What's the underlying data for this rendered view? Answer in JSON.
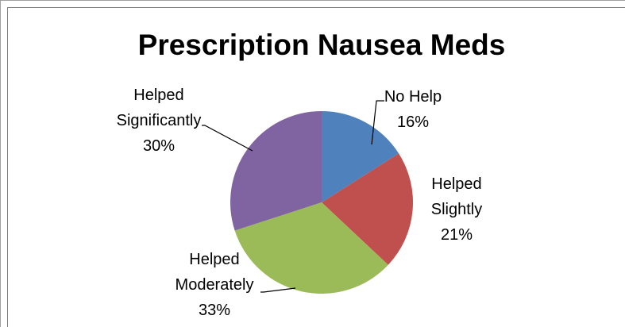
{
  "chart_data": {
    "type": "pie",
    "title": "Prescription Nausea Meds",
    "categories": [
      "No Help",
      "Helped Slightly",
      "Helped Moderately",
      "Helped Significantly"
    ],
    "values": [
      16,
      21,
      33,
      30
    ],
    "value_labels": [
      "16%",
      "21%",
      "33%",
      "30%"
    ],
    "colors": [
      "#4f81bd",
      "#c0504d",
      "#9bbb59",
      "#8064a2"
    ]
  }
}
